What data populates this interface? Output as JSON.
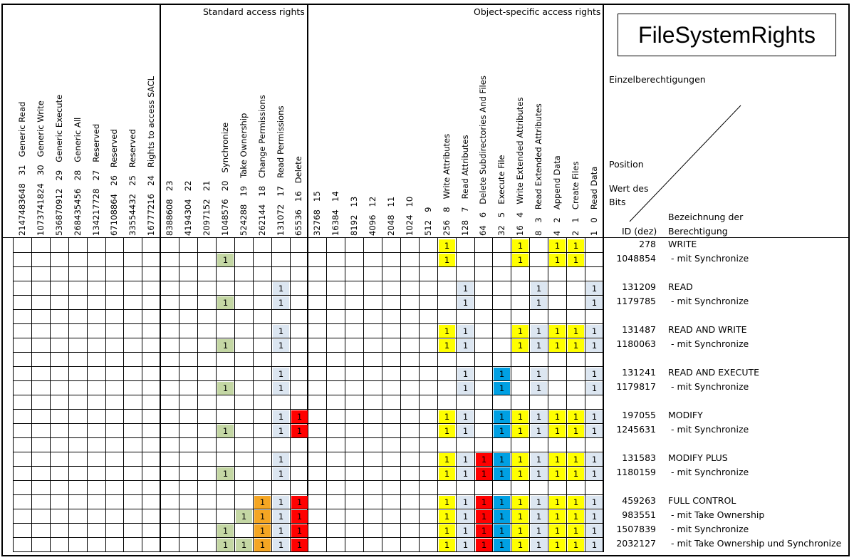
{
  "title": "FileSystemRights",
  "sections": {
    "standard": "Standard access rights",
    "object": "Object-specific access rights"
  },
  "legend": {
    "einzel": "Einzelberechtigungen",
    "position": "Position",
    "wert_line1": "Wert des",
    "wert_line2": "Bits",
    "id_header": "ID (dez)",
    "name_header_line1": "Bezeichnung der",
    "name_header_line2": "Berechtigung"
  },
  "columns": [
    {
      "pos": "31",
      "name": "Generic Read",
      "value": "2147483648"
    },
    {
      "pos": "30",
      "name": "Generic Write",
      "value": "1073741824"
    },
    {
      "pos": "29",
      "name": "Generic Execute",
      "value": "536870912"
    },
    {
      "pos": "28",
      "name": "Generic All",
      "value": "268435456"
    },
    {
      "pos": "27",
      "name": "Reserved",
      "value": "134217728"
    },
    {
      "pos": "26",
      "name": "Reserved",
      "value": "67108864"
    },
    {
      "pos": "25",
      "name": "Reserved",
      "value": "33554432"
    },
    {
      "pos": "24",
      "name": "Rights to access SACL",
      "value": "16777216"
    },
    {
      "pos": "23",
      "name": "",
      "value": "8388608"
    },
    {
      "pos": "22",
      "name": "",
      "value": "4194304"
    },
    {
      "pos": "21",
      "name": "",
      "value": "2097152"
    },
    {
      "pos": "20",
      "name": "Synchronize",
      "value": "1048576"
    },
    {
      "pos": "19",
      "name": "Take Ownership",
      "value": "524288"
    },
    {
      "pos": "18",
      "name": "Change Permissions",
      "value": "262144"
    },
    {
      "pos": "17",
      "name": "Read Permissions",
      "value": "131072"
    },
    {
      "pos": "16",
      "name": "Delete",
      "value": "65536"
    },
    {
      "pos": "15",
      "name": "",
      "value": "32768"
    },
    {
      "pos": "14",
      "name": "",
      "value": "16384"
    },
    {
      "pos": "13",
      "name": "",
      "value": "8192"
    },
    {
      "pos": "12",
      "name": "",
      "value": "4096"
    },
    {
      "pos": "11",
      "name": "",
      "value": "2048"
    },
    {
      "pos": "10",
      "name": "",
      "value": "1024"
    },
    {
      "pos": "9",
      "name": "",
      "value": "512"
    },
    {
      "pos": "8",
      "name": "Write Attributes",
      "value": "256"
    },
    {
      "pos": "7",
      "name": "Read Attributes",
      "value": "128"
    },
    {
      "pos": "6",
      "name": "Delete Subdirectories And Files",
      "value": "64"
    },
    {
      "pos": "5",
      "name": "Execute File",
      "value": "32"
    },
    {
      "pos": "4",
      "name": "Write Extended Attributes",
      "value": "16"
    },
    {
      "pos": "3",
      "name": "Read Extended Attributes",
      "value": "8"
    },
    {
      "pos": "2",
      "name": "Append Data",
      "value": "4"
    },
    {
      "pos": "1",
      "name": "Create Files",
      "value": "2"
    },
    {
      "pos": "0",
      "name": "Read Data",
      "value": "1"
    }
  ],
  "bit_colors": {
    "20": "#c4d7a4",
    "19": "#c4d7a4",
    "18": "#f5a623",
    "17": "#dce6f1",
    "16": "#ff0000",
    "8": "#ffff00",
    "7": "#dce6f1",
    "6": "#ff0000",
    "5": "#00a0e3",
    "4": "#ffff00",
    "3": "#dce6f1",
    "2": "#ffff00",
    "1": "#ffff00",
    "0": "#dce6f1"
  },
  "bit_mark": "1",
  "rows": [
    {
      "id": "278",
      "name": "WRITE",
      "bits": [
        8,
        4,
        2,
        1
      ]
    },
    {
      "id": "1048854",
      "name": " - mit Synchronize",
      "bits": [
        20,
        8,
        4,
        2,
        1
      ]
    },
    {
      "id": "",
      "name": "",
      "bits": []
    },
    {
      "id": "131209",
      "name": "READ",
      "bits": [
        17,
        7,
        3,
        0
      ]
    },
    {
      "id": "1179785",
      "name": " - mit Synchronize",
      "bits": [
        20,
        17,
        7,
        3,
        0
      ]
    },
    {
      "id": "",
      "name": "",
      "bits": []
    },
    {
      "id": "131487",
      "name": "READ AND WRITE",
      "bits": [
        17,
        8,
        7,
        4,
        3,
        2,
        1,
        0
      ]
    },
    {
      "id": "1180063",
      "name": " - mit Synchronize",
      "bits": [
        20,
        17,
        8,
        7,
        4,
        3,
        2,
        1,
        0
      ]
    },
    {
      "id": "",
      "name": "",
      "bits": []
    },
    {
      "id": "131241",
      "name": "READ AND EXECUTE",
      "bits": [
        17,
        7,
        5,
        3,
        0
      ]
    },
    {
      "id": "1179817",
      "name": " - mit Synchronize",
      "bits": [
        20,
        17,
        7,
        5,
        3,
        0
      ]
    },
    {
      "id": "",
      "name": "",
      "bits": []
    },
    {
      "id": "197055",
      "name": "MODIFY",
      "bits": [
        17,
        16,
        8,
        7,
        5,
        4,
        3,
        2,
        1,
        0
      ]
    },
    {
      "id": "1245631",
      "name": " - mit Synchronize",
      "bits": [
        20,
        17,
        16,
        8,
        7,
        5,
        4,
        3,
        2,
        1,
        0
      ]
    },
    {
      "id": "",
      "name": "",
      "bits": []
    },
    {
      "id": "131583",
      "name": "MODIFY PLUS",
      "bits": [
        17,
        8,
        7,
        6,
        5,
        4,
        3,
        2,
        1,
        0
      ]
    },
    {
      "id": "1180159",
      "name": " - mit Synchronize",
      "bits": [
        20,
        17,
        8,
        7,
        6,
        5,
        4,
        3,
        2,
        1,
        0
      ]
    },
    {
      "id": "",
      "name": "",
      "bits": []
    },
    {
      "id": "459263",
      "name": "FULL CONTROL",
      "bits": [
        18,
        17,
        16,
        8,
        7,
        6,
        5,
        4,
        3,
        2,
        1,
        0
      ]
    },
    {
      "id": "983551",
      "name": " - mit Take Ownership",
      "bits": [
        19,
        18,
        17,
        16,
        8,
        7,
        6,
        5,
        4,
        3,
        2,
        1,
        0
      ]
    },
    {
      "id": "1507839",
      "name": " - mit Synchronize",
      "bits": [
        20,
        18,
        17,
        16,
        8,
        7,
        6,
        5,
        4,
        3,
        2,
        1,
        0
      ]
    },
    {
      "id": "2032127",
      "name": " - mit Take Ownership und Synchronize",
      "bits": [
        20,
        19,
        18,
        17,
        16,
        8,
        7,
        6,
        5,
        4,
        3,
        2,
        1,
        0
      ]
    }
  ]
}
